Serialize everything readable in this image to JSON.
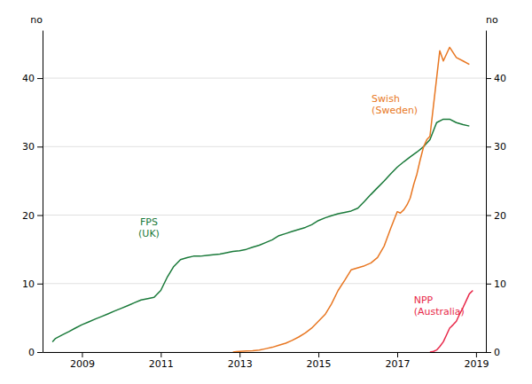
{
  "chart_data": {
    "type": "line",
    "ylabel": "no",
    "y2label": "no",
    "xlim": [
      2008.0,
      2019.25
    ],
    "xticks": [
      2009,
      2011,
      2013,
      2015,
      2017,
      2019
    ],
    "ylim": [
      0,
      47
    ],
    "yticks": [
      0,
      10,
      20,
      30,
      40
    ],
    "y2lim": [
      0,
      47
    ],
    "y2ticks": [
      0,
      10,
      20,
      30,
      40
    ],
    "grid": true,
    "series": [
      {
        "color": "#1a7a3a",
        "x": [
          2008.25,
          2008.33,
          2008.5,
          2008.67,
          2008.83,
          2009.0,
          2009.17,
          2009.33,
          2009.5,
          2009.67,
          2009.83,
          2010.0,
          2010.17,
          2010.33,
          2010.5,
          2010.67,
          2010.83,
          2011.0,
          2011.17,
          2011.33,
          2011.5,
          2011.67,
          2011.83,
          2012.0,
          2012.17,
          2012.33,
          2012.5,
          2012.67,
          2012.83,
          2013.0,
          2013.17,
          2013.33,
          2013.5,
          2013.67,
          2013.83,
          2014.0,
          2014.17,
          2014.33,
          2014.5,
          2014.67,
          2014.83,
          2015.0,
          2015.17,
          2015.33,
          2015.5,
          2015.67,
          2015.83,
          2016.0,
          2016.17,
          2016.33,
          2016.5,
          2016.67,
          2016.83,
          2017.0,
          2017.17,
          2017.33,
          2017.5,
          2017.67,
          2017.83,
          2018.0,
          2018.17,
          2018.33,
          2018.5,
          2018.67,
          2018.83
        ],
        "values": [
          1.5,
          2.0,
          2.5,
          3.0,
          3.5,
          4.0,
          4.4,
          4.8,
          5.2,
          5.6,
          6.0,
          6.4,
          6.8,
          7.2,
          7.6,
          7.8,
          8.0,
          9.0,
          11.0,
          12.5,
          13.5,
          13.8,
          14.0,
          14.0,
          14.1,
          14.2,
          14.3,
          14.5,
          14.7,
          14.8,
          15.0,
          15.3,
          15.6,
          16.0,
          16.4,
          17.0,
          17.3,
          17.6,
          17.9,
          18.2,
          18.6,
          19.2,
          19.6,
          19.9,
          20.2,
          20.4,
          20.6,
          21.0,
          22.0,
          23.0,
          24.0,
          25.0,
          26.0,
          27.0,
          27.8,
          28.5,
          29.2,
          30.0,
          31.0,
          33.5,
          34.0,
          34.0,
          33.5,
          33.2,
          33.0
        ]
      },
      {
        "color": "#e87722",
        "x": [
          2012.83,
          2012.92,
          2013.0,
          2013.17,
          2013.33,
          2013.5,
          2013.67,
          2013.83,
          2014.0,
          2014.17,
          2014.33,
          2014.5,
          2014.67,
          2014.83,
          2015.0,
          2015.17,
          2015.33,
          2015.5,
          2015.67,
          2015.83,
          2016.0,
          2016.17,
          2016.33,
          2016.5,
          2016.67,
          2016.83,
          2017.0,
          2017.08,
          2017.17,
          2017.25,
          2017.33,
          2017.42,
          2017.5,
          2017.58,
          2017.67,
          2017.75,
          2017.83,
          2018.0,
          2018.08,
          2018.17,
          2018.25,
          2018.33,
          2018.5,
          2018.67,
          2018.83
        ],
        "values": [
          0.0,
          0.05,
          0.1,
          0.15,
          0.2,
          0.3,
          0.5,
          0.7,
          1.0,
          1.3,
          1.7,
          2.2,
          2.8,
          3.5,
          4.5,
          5.5,
          7.0,
          9.0,
          10.5,
          12.0,
          12.3,
          12.6,
          13.0,
          13.8,
          15.5,
          18.0,
          20.5,
          20.3,
          20.8,
          21.5,
          22.5,
          24.5,
          26.0,
          28.0,
          30.0,
          31.0,
          31.5,
          40.0,
          44.0,
          42.5,
          43.5,
          44.5,
          43.0,
          42.5,
          42.0
        ]
      },
      {
        "color": "#e8294a",
        "x": [
          2017.83,
          2017.92,
          2018.0,
          2018.08,
          2018.17,
          2018.25,
          2018.33,
          2018.42,
          2018.5,
          2018.58,
          2018.67,
          2018.75,
          2018.83,
          2018.92
        ],
        "values": [
          0.0,
          0.1,
          0.3,
          0.8,
          1.5,
          2.5,
          3.5,
          4.0,
          4.5,
          5.5,
          6.5,
          7.5,
          8.5,
          9.0
        ]
      }
    ],
    "annotations": [
      {
        "text": "FPS\n(UK)",
        "x": 2010.7,
        "y": 16.5,
        "color": "#1a7a3a"
      },
      {
        "text": "Swish\n(Sweden)",
        "x": 2016.35,
        "y": 34.5,
        "color": "#e87722"
      },
      {
        "text": "NPP\n(Australia)",
        "x": 2017.42,
        "y": 6.8,
        "color": "#e8294a"
      }
    ]
  }
}
